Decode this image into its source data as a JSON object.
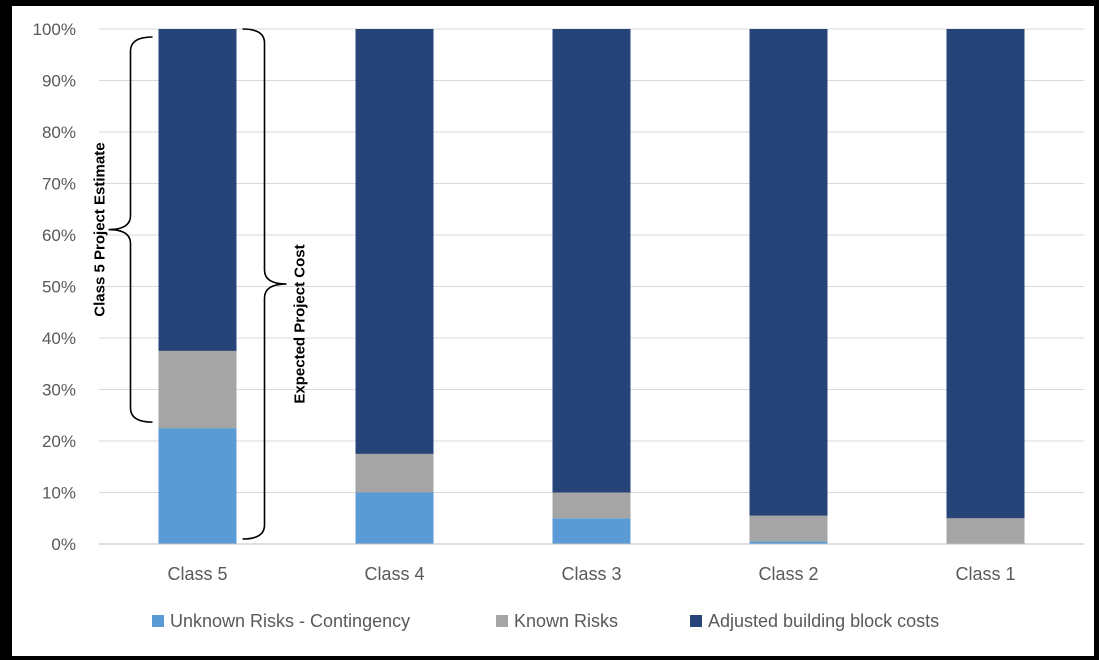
{
  "chart_data": {
    "type": "bar",
    "stacked": true,
    "categories": [
      "Class 5",
      "Class 4",
      "Class 3",
      "Class 2",
      "Class 1"
    ],
    "series": [
      {
        "name": "Unknown Risks - Contingency",
        "color": "#5b9bd5",
        "values": [
          22.5,
          10,
          5,
          0.5,
          0
        ]
      },
      {
        "name": "Known Risks",
        "color": "#a5a5a5",
        "values": [
          15,
          7.5,
          5,
          5,
          5
        ]
      },
      {
        "name": "Adjusted building block costs",
        "color": "#264478",
        "values": [
          62.5,
          82.5,
          90,
          94.5,
          95
        ]
      }
    ],
    "yticks": [
      "0%",
      "10%",
      "20%",
      "30%",
      "40%",
      "50%",
      "60%",
      "70%",
      "80%",
      "90%",
      "100%"
    ],
    "ylim": [
      0,
      100
    ],
    "grid": true,
    "legend_position": "bottom",
    "annotations": [
      {
        "label": "Class 5 Project Estimate",
        "from": 22.5,
        "to": 100
      },
      {
        "label": "Expected Project Cost",
        "from": 0,
        "to": 100
      }
    ]
  }
}
